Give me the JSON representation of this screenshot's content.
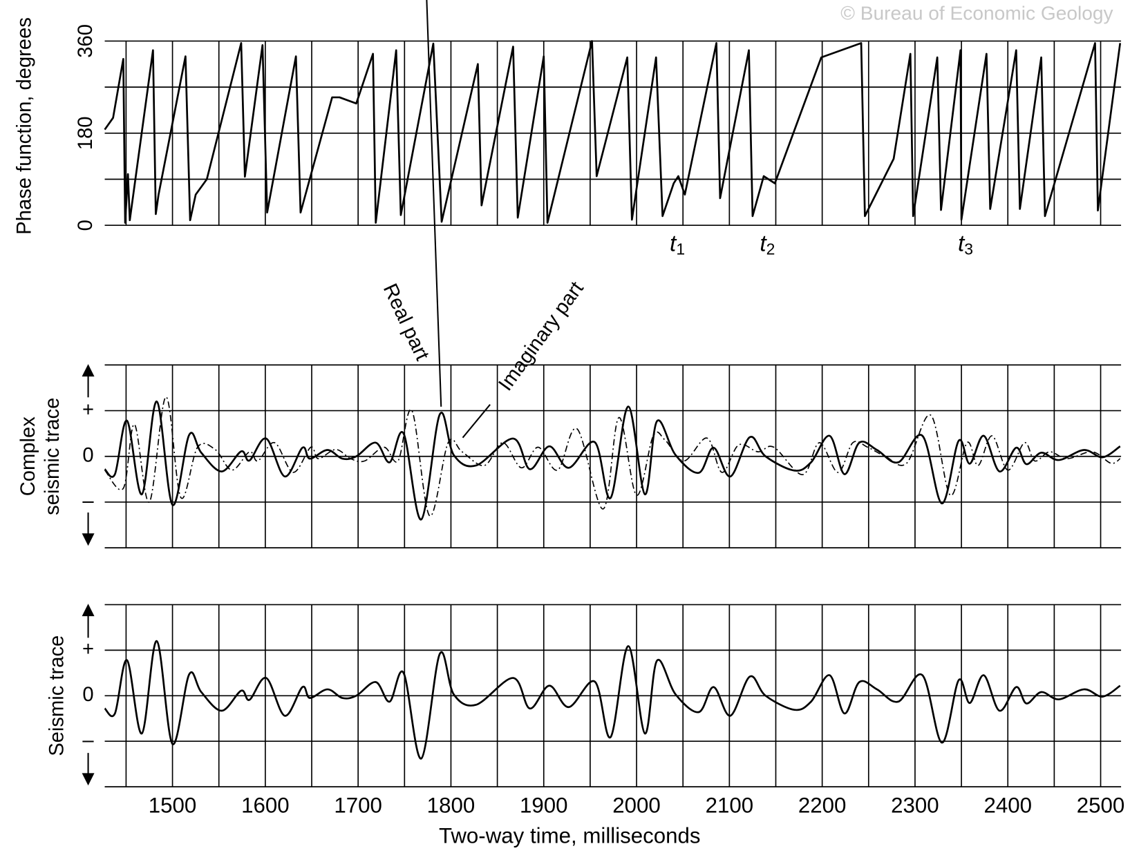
{
  "watermark": "© Bureau of Economic Geology",
  "chart_data": [
    {
      "type": "line",
      "ylabel": "Phase function, degrees",
      "xlim": [
        1427,
        2522
      ],
      "ylim": [
        0,
        360
      ],
      "yticks": [
        0,
        180,
        360
      ],
      "yminor": [
        90,
        270
      ],
      "xgrid": [
        1450,
        1500,
        1550,
        1600,
        1650,
        1700,
        1750,
        1800,
        1850,
        1900,
        1950,
        2000,
        2050,
        2100,
        2150,
        2200,
        2250,
        2300,
        2350,
        2400,
        2450,
        2500
      ],
      "color": "#000000",
      "x": [
        1427,
        1436,
        1447,
        1449,
        1452,
        1454,
        1479,
        1482,
        1485,
        1514,
        1519,
        1525,
        1537,
        1574,
        1578,
        1597,
        1602,
        1633,
        1638,
        1672,
        1680,
        1698,
        1716,
        1719,
        1741,
        1746,
        1781,
        1790,
        1829,
        1833,
        1867,
        1872,
        1900,
        1904,
        1952,
        1957,
        1990,
        1995,
        2021,
        2028,
        2040,
        2045,
        2052,
        2086,
        2090,
        2121,
        2125,
        2137,
        2149,
        2176,
        2199,
        2242,
        2246,
        2277,
        2295,
        2298,
        2324,
        2328,
        2349,
        2350,
        2377,
        2381,
        2409,
        2413,
        2436,
        2440,
        2494,
        2497,
        2521
      ],
      "values": [
        187,
        210,
        325,
        5,
        100,
        10,
        342,
        22,
        60,
        330,
        10,
        60,
        90,
        356,
        95,
        352,
        25,
        330,
        25,
        250,
        250,
        238,
        335,
        5,
        342,
        20,
        355,
        7,
        315,
        39,
        349,
        15,
        330,
        5,
        360,
        96,
        328,
        11,
        328,
        18,
        82,
        96,
        60,
        356,
        53,
        342,
        18,
        96,
        82,
        215,
        328,
        356,
        18,
        130,
        335,
        18,
        328,
        30,
        342,
        11,
        335,
        32,
        342,
        32,
        328,
        18,
        356,
        29,
        356
      ],
      "annotations": [
        {
          "text": "t",
          "sub": "1"
        },
        {
          "text": "t",
          "sub": "2"
        },
        {
          "text": "t",
          "sub": "3"
        }
      ]
    },
    {
      "type": "line",
      "ylabel": [
        "Complex",
        "seismic trace"
      ],
      "smooth": true,
      "xlim": [
        1427,
        2522
      ],
      "ylim": [
        -2,
        2
      ],
      "yticks": [
        {
          "value": 1,
          "label": "+"
        },
        0,
        {
          "value": -1,
          "label": "–"
        }
      ],
      "yminor": [
        2,
        -2
      ],
      "xgrid": [
        1450,
        1500,
        1550,
        1600,
        1650,
        1700,
        1750,
        1800,
        1850,
        1900,
        1950,
        2000,
        2050,
        2100,
        2150,
        2200,
        2250,
        2300,
        2350,
        2400,
        2450,
        2500
      ],
      "series": [
        {
          "name": "Real part",
          "color": "#000000",
          "dash": "solid",
          "x": [
            1427,
            1438,
            1451,
            1467,
            1483,
            1500,
            1518,
            1531,
            1553,
            1574,
            1583,
            1601,
            1621,
            1640,
            1648,
            1667,
            1683,
            1698,
            1719,
            1734,
            1749,
            1768,
            1788,
            1803,
            1827,
            1867,
            1885,
            1906,
            1927,
            1955,
            1972,
            1991,
            2009,
            2022,
            2042,
            2067,
            2083,
            2101,
            2122,
            2139,
            2170,
            2188,
            2208,
            2224,
            2240,
            2259,
            2282,
            2308,
            2329,
            2347,
            2359,
            2374,
            2391,
            2409,
            2420,
            2436,
            2455,
            2482,
            2502,
            2521
          ],
          "values": [
            -0.28,
            -0.39,
            0.78,
            -0.83,
            1.2,
            -1.06,
            0.47,
            0.08,
            -0.33,
            0.11,
            -0.09,
            0.39,
            -0.44,
            0.19,
            -0.05,
            0.14,
            -0.05,
            0,
            0.3,
            -0.13,
            0.5,
            -1.38,
            0.92,
            0.03,
            -0.2,
            0.39,
            -0.28,
            0.22,
            -0.25,
            0.31,
            -0.91,
            1.09,
            -0.83,
            0.77,
            0.03,
            -0.36,
            0.19,
            -0.44,
            0.42,
            0,
            -0.31,
            -0.13,
            0.45,
            -0.39,
            0.3,
            0.14,
            -0.13,
            0.45,
            -1.03,
            0.34,
            -0.16,
            0.45,
            -0.33,
            0.19,
            -0.17,
            0.08,
            -0.08,
            0.14,
            -0.02,
            0.22
          ]
        },
        {
          "name": "Imaginary part",
          "color": "#000000",
          "dash": "dash-dot",
          "x": [
            1427,
            1447,
            1459,
            1475,
            1493,
            1509,
            1527,
            1546,
            1564,
            1583,
            1592,
            1610,
            1630,
            1649,
            1657,
            1676,
            1692,
            1707,
            1728,
            1743,
            1758,
            1777,
            1797,
            1812,
            1836,
            1856,
            1876,
            1894,
            1915,
            1936,
            1964,
            1981,
            2000,
            2018,
            2031,
            2051,
            2076,
            2092,
            2110,
            2131,
            2148,
            2179,
            2197,
            2217,
            2233,
            2249,
            2268,
            2291,
            2317,
            2338,
            2356,
            2368,
            2383,
            2400,
            2418,
            2429,
            2445,
            2464,
            2491,
            2511,
            2521
          ],
          "values": [
            -0.3,
            -0.7,
            0.7,
            -1.0,
            1.3,
            -0.9,
            0.2,
            0.15,
            -0.3,
            0.1,
            -0.1,
            0.3,
            -0.35,
            0.2,
            -0.05,
            0.15,
            -0.05,
            -0.1,
            0.2,
            -0.1,
            1.0,
            -1.3,
            0.3,
            0.1,
            -0.2,
            0.3,
            -0.25,
            0.2,
            -0.3,
            0.6,
            -1.15,
            0.85,
            -0.85,
            0.45,
            0.35,
            -0.1,
            0.4,
            -0.35,
            0.25,
            0.1,
            0.2,
            -0.4,
            0.3,
            -0.35,
            0.3,
            0.2,
            0.0,
            -0.15,
            0.9,
            -0.85,
            0.3,
            -0.2,
            0.45,
            -0.3,
            0.3,
            -0.1,
            0.1,
            -0.05,
            0.1,
            -0.15,
            -0.05
          ]
        }
      ]
    },
    {
      "type": "line",
      "ylabel": "Seismic trace",
      "xlabel": "Two-way time, milliseconds",
      "smooth": true,
      "xlim": [
        1427,
        2522
      ],
      "ylim": [
        -2,
        2
      ],
      "yticks": [
        {
          "value": 1,
          "label": "+"
        },
        0,
        {
          "value": -1,
          "label": "–"
        }
      ],
      "yminor": [
        2,
        -2
      ],
      "xticks": [
        1500,
        1600,
        1700,
        1800,
        1900,
        2000,
        2100,
        2200,
        2300,
        2400,
        2500
      ],
      "xminor": [
        1450,
        1550,
        1650,
        1750,
        1850,
        1950,
        2050,
        2150,
        2250,
        2350,
        2450
      ],
      "color": "#000000",
      "x": [
        1427,
        1438,
        1451,
        1467,
        1483,
        1500,
        1518,
        1531,
        1553,
        1574,
        1583,
        1601,
        1621,
        1640,
        1648,
        1667,
        1683,
        1698,
        1719,
        1734,
        1749,
        1768,
        1788,
        1803,
        1827,
        1867,
        1885,
        1906,
        1927,
        1955,
        1972,
        1991,
        2009,
        2022,
        2042,
        2067,
        2083,
        2101,
        2122,
        2139,
        2170,
        2188,
        2208,
        2224,
        2240,
        2259,
        2282,
        2308,
        2329,
        2347,
        2359,
        2374,
        2391,
        2409,
        2420,
        2436,
        2455,
        2482,
        2502,
        2521
      ],
      "values": [
        -0.28,
        -0.39,
        0.78,
        -0.83,
        1.2,
        -1.06,
        0.47,
        0.08,
        -0.33,
        0.11,
        -0.09,
        0.39,
        -0.44,
        0.19,
        -0.05,
        0.14,
        -0.05,
        0,
        0.3,
        -0.13,
        0.5,
        -1.38,
        0.92,
        0.03,
        -0.2,
        0.39,
        -0.28,
        0.22,
        -0.25,
        0.31,
        -0.91,
        1.09,
        -0.83,
        0.77,
        0.03,
        -0.36,
        0.19,
        -0.44,
        0.42,
        0,
        -0.31,
        -0.13,
        0.45,
        -0.39,
        0.3,
        0.14,
        -0.13,
        0.45,
        -1.03,
        0.34,
        -0.16,
        0.45,
        -0.33,
        0.19,
        -0.17,
        0.08,
        -0.08,
        0.14,
        -0.02,
        0.22
      ]
    }
  ]
}
